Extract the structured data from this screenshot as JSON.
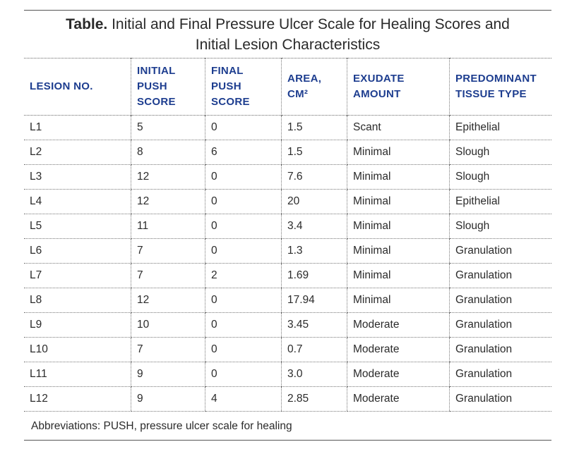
{
  "title": {
    "bold": "Table.",
    "line1": "Initial and Final Pressure Ulcer Scale for Healing Scores and",
    "line2": "Initial Lesion Characteristics"
  },
  "headers": [
    [
      "LESION NO."
    ],
    [
      "INITIAL",
      "PUSH",
      "SCORE"
    ],
    [
      "FINAL",
      "PUSH",
      "SCORE"
    ],
    [
      "AREA,",
      "CM²"
    ],
    [
      "EXUDATE",
      "AMOUNT"
    ],
    [
      "PREDOMINANT",
      "TISSUE TYPE"
    ]
  ],
  "rows": [
    [
      "L1",
      "5",
      "0",
      "1.5",
      "Scant",
      "Epithelial"
    ],
    [
      "L2",
      "8",
      "6",
      "1.5",
      "Minimal",
      "Slough"
    ],
    [
      "L3",
      "12",
      "0",
      "7.6",
      "Minimal",
      "Slough"
    ],
    [
      "L4",
      "12",
      "0",
      "20",
      "Minimal",
      "Epithelial"
    ],
    [
      "L5",
      "11",
      "0",
      "3.4",
      "Minimal",
      "Slough"
    ],
    [
      "L6",
      "7",
      "0",
      "1.3",
      "Minimal",
      "Granulation"
    ],
    [
      "L7",
      "7",
      "2",
      "1.69",
      "Minimal",
      "Granulation"
    ],
    [
      "L8",
      "12",
      "0",
      "17.94",
      "Minimal",
      "Granulation"
    ],
    [
      "L9",
      "10",
      "0",
      "3.45",
      "Moderate",
      "Granulation"
    ],
    [
      "L10",
      "7",
      "0",
      "0.7",
      "Moderate",
      "Granulation"
    ],
    [
      "L11",
      "9",
      "0",
      "3.0",
      "Moderate",
      "Granulation"
    ],
    [
      "L12",
      "9",
      "4",
      "2.85",
      "Moderate",
      "Granulation"
    ]
  ],
  "footnote": "Abbreviations: PUSH, pressure ulcer scale for healing"
}
